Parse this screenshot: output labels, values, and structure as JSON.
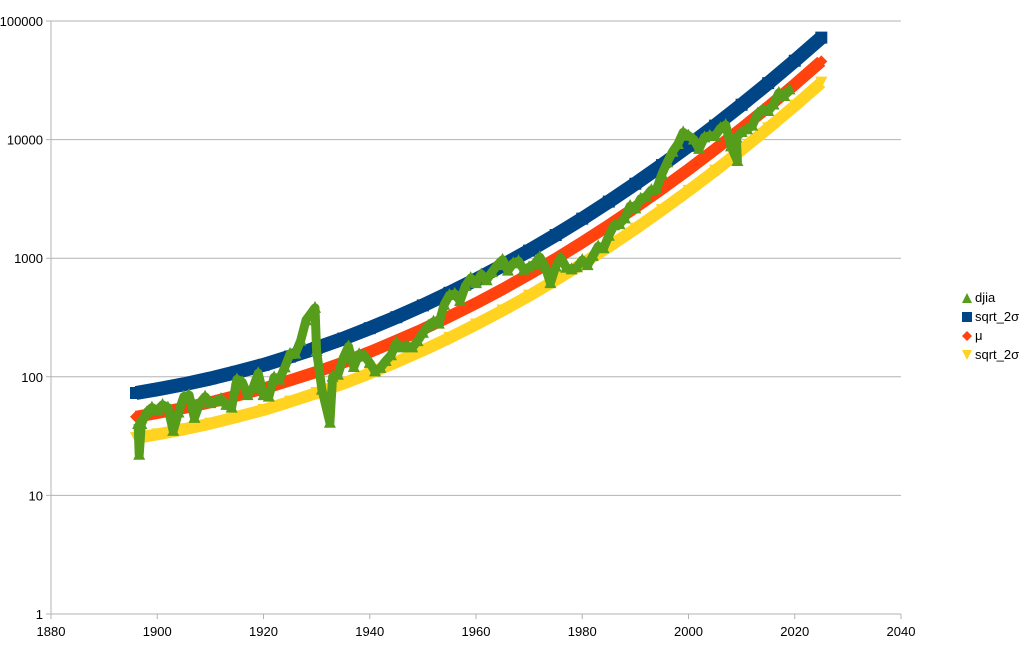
{
  "chart_data": {
    "type": "scatter",
    "title": "",
    "xlabel": "",
    "ylabel": "",
    "xlim": [
      1880,
      2040
    ],
    "ylim": [
      1,
      100000
    ],
    "y_scale": "log",
    "grid": "horizontal major gridlines",
    "legend_position": "right",
    "x_ticks": [
      "1880",
      "1900",
      "1920",
      "1940",
      "1960",
      "1980",
      "2000",
      "2020",
      "2040"
    ],
    "y_ticks": [
      "1",
      "10",
      "100",
      "1000",
      "10000",
      "100000"
    ],
    "series": [
      {
        "name": "sqrt_2σ",
        "color": "#004586",
        "marker": "square",
        "x": [
          1896,
          1900,
          1905,
          1910,
          1915,
          1920,
          1925,
          1930,
          1935,
          1940,
          1945,
          1950,
          1955,
          1960,
          1965,
          1970,
          1975,
          1980,
          1985,
          1990,
          1995,
          2000,
          2005,
          2010,
          2015,
          2020,
          2025
        ],
        "y": [
          73,
          78.5,
          86.5,
          96.7,
          110,
          126,
          148,
          175,
          210,
          257,
          318,
          400,
          511,
          661,
          869,
          1159,
          1568,
          2155,
          3000,
          4246,
          6095,
          8870,
          13120,
          19680,
          29920,
          46240,
          72440
        ]
      },
      {
        "name": "μ",
        "color": "#ff420e",
        "marker": "diamond",
        "x": [
          1896,
          1900,
          1905,
          1910,
          1915,
          1920,
          1925,
          1930,
          1935,
          1940,
          1945,
          1950,
          1955,
          1960,
          1965,
          1970,
          1975,
          1980,
          1985,
          1990,
          1995,
          2000,
          2005,
          2010,
          2015,
          2020,
          2025
        ],
        "y": [
          46,
          49.5,
          54.6,
          61,
          69.4,
          79.5,
          93.4,
          110,
          132,
          162,
          201,
          252,
          322,
          417,
          548,
          731,
          989,
          1360,
          1893,
          2679,
          3846,
          5597,
          8279,
          12420,
          18880,
          29180,
          45710
        ]
      },
      {
        "name": "sqrt_2σ",
        "color": "#ffd320",
        "marker": "triangle-down",
        "x": [
          1896,
          1900,
          1905,
          1910,
          1915,
          1920,
          1925,
          1930,
          1935,
          1940,
          1945,
          1950,
          1955,
          1960,
          1965,
          1970,
          1975,
          1980,
          1985,
          1990,
          1995,
          2000,
          2005,
          2010,
          2015,
          2020,
          2025
        ],
        "y": [
          30.4,
          32.7,
          36.1,
          40.3,
          45.9,
          52.5,
          61.7,
          73,
          87.6,
          107,
          133,
          167,
          213,
          276,
          362,
          483,
          654,
          899,
          1251,
          1771,
          2542,
          3699,
          5471,
          8207,
          12480,
          19280,
          30210
        ]
      },
      {
        "name": "djia",
        "color": "#579d1c",
        "marker": "triangle-up",
        "x": [
          1896.4,
          1896.6,
          1897,
          1898,
          1899,
          1900,
          1901,
          1902,
          1903,
          1904,
          1905,
          1906,
          1907,
          1908,
          1909,
          1910,
          1911,
          1912,
          1913,
          1914,
          1915,
          1916,
          1917,
          1918,
          1919,
          1920,
          1921,
          1922,
          1923,
          1924,
          1925,
          1926,
          1927,
          1928,
          1929.7,
          1930,
          1931,
          1932.5,
          1933,
          1934,
          1935,
          1936,
          1937,
          1938,
          1939,
          1940,
          1941,
          1942,
          1943,
          1944,
          1945,
          1946,
          1947,
          1948,
          1949,
          1950,
          1951,
          1952,
          1953,
          1954,
          1955,
          1956,
          1957,
          1958,
          1959,
          1960,
          1961,
          1962,
          1963,
          1964,
          1965,
          1966,
          1967,
          1968,
          1969,
          1970,
          1971,
          1972,
          1973,
          1974,
          1975,
          1976,
          1977,
          1978,
          1979,
          1980,
          1981,
          1982,
          1983,
          1984,
          1985,
          1986,
          1987,
          1988,
          1989,
          1990,
          1991,
          1992,
          1993,
          1994,
          1995,
          1996,
          1997,
          1998,
          1999,
          2000,
          2001,
          2002,
          2003,
          2004,
          2005,
          2006,
          2007,
          2008,
          2009.2,
          2009,
          2010,
          2011,
          2012,
          2013,
          2014,
          2015,
          2016,
          2017,
          2018,
          2019
        ],
        "y": [
          40,
          22,
          40,
          50,
          55,
          52,
          58,
          55,
          35,
          50,
          68,
          70,
          45,
          60,
          68,
          60,
          62,
          65,
          58,
          55,
          95,
          90,
          70,
          80,
          107,
          70,
          68,
          99,
          95,
          120,
          156,
          157,
          202,
          300,
          381,
          165,
          78,
          41,
          100,
          104,
          144,
          180,
          121,
          155,
          150,
          131,
          111,
          119,
          136,
          152,
          193,
          177,
          181,
          177,
          200,
          235,
          269,
          292,
          281,
          404,
          488,
          500,
          436,
          584,
          679,
          616,
          731,
          652,
          763,
          874,
          969,
          786,
          905,
          944,
          800,
          839,
          890,
          1020,
          851,
          616,
          852,
          1005,
          831,
          805,
          839,
          964,
          875,
          1047,
          1259,
          1212,
          1547,
          1896,
          1939,
          2169,
          2753,
          2634,
          3169,
          3301,
          3754,
          3834,
          5117,
          6448,
          7908,
          9181,
          11497,
          10787,
          10022,
          8342,
          10454,
          10783,
          10718,
          12463,
          13265,
          8776,
          6600,
          10428,
          11578,
          12218,
          13104,
          16577,
          17823,
          17425,
          19763,
          24719,
          23327,
          26500
        ]
      }
    ]
  }
}
